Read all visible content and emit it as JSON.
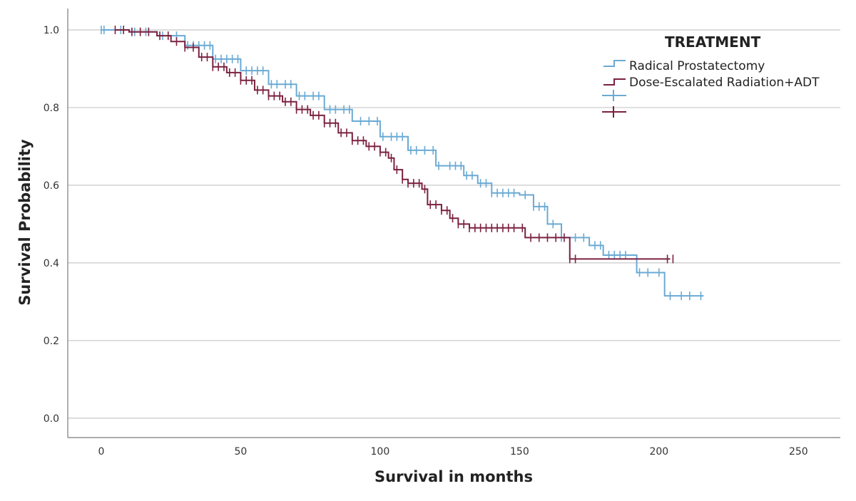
{
  "chart_data": {
    "type": "line",
    "title": "",
    "xlabel": "Survival in months",
    "ylabel": "Survival Probability",
    "xlim": [
      -12,
      265
    ],
    "ylim": [
      -0.05,
      1.055
    ],
    "x_ticks": [
      0,
      50,
      100,
      150,
      200,
      250
    ],
    "y_ticks": [
      0.0,
      0.2,
      0.4,
      0.6,
      0.8,
      1.0
    ],
    "x_tick_labels": [
      "0",
      "50",
      "100",
      "150",
      "200",
      "250"
    ],
    "y_tick_labels": [
      "0.0",
      "0.2",
      "0.4",
      "0.6",
      "0.8",
      "1.0"
    ],
    "grid": "horizontal",
    "legend": {
      "title": "TREATMENT",
      "placement": "top-right",
      "entries": [
        "Radical Prostatectomy",
        "Dose-Escalated Radiation+ADT",
        "",
        ""
      ]
    },
    "series": [
      {
        "name": "Radical Prostatectomy",
        "color": "#6aaad4",
        "step_points": [
          [
            0,
            1.0
          ],
          [
            10,
            0.995
          ],
          [
            20,
            0.985
          ],
          [
            30,
            0.96
          ],
          [
            40,
            0.925
          ],
          [
            50,
            0.895
          ],
          [
            60,
            0.86
          ],
          [
            70,
            0.83
          ],
          [
            80,
            0.795
          ],
          [
            90,
            0.765
          ],
          [
            100,
            0.725
          ],
          [
            110,
            0.69
          ],
          [
            120,
            0.65
          ],
          [
            130,
            0.625
          ],
          [
            135,
            0.605
          ],
          [
            140,
            0.58
          ],
          [
            150,
            0.575
          ],
          [
            155,
            0.545
          ],
          [
            160,
            0.5
          ],
          [
            165,
            0.465
          ],
          [
            175,
            0.445
          ],
          [
            180,
            0.42
          ],
          [
            190,
            0.42
          ],
          [
            192,
            0.375
          ],
          [
            202,
            0.315
          ],
          [
            216,
            0.315
          ]
        ],
        "censor_x": [
          0,
          1,
          7,
          12,
          16,
          22,
          27,
          31,
          33,
          35,
          37,
          39,
          41,
          43,
          45,
          47,
          49,
          52,
          54,
          56,
          58,
          61,
          63,
          66,
          68,
          71,
          73,
          76,
          78,
          82,
          84,
          87,
          89,
          93,
          96,
          99,
          101,
          104,
          106,
          108,
          111,
          113,
          116,
          119,
          121,
          125,
          127,
          129,
          131,
          133,
          136,
          138,
          140,
          142,
          144,
          146,
          148,
          152,
          155,
          157,
          159,
          162,
          165,
          170,
          173,
          177,
          179,
          182,
          184,
          186,
          188,
          193,
          196,
          200,
          204,
          208,
          211,
          215
        ]
      },
      {
        "name": "Dose-Escalated Radiation+ADT",
        "color": "#7b2140",
        "step_points": [
          [
            5,
            1.0
          ],
          [
            10,
            0.995
          ],
          [
            20,
            0.985
          ],
          [
            25,
            0.97
          ],
          [
            30,
            0.955
          ],
          [
            35,
            0.93
          ],
          [
            40,
            0.905
          ],
          [
            45,
            0.89
          ],
          [
            50,
            0.87
          ],
          [
            55,
            0.845
          ],
          [
            60,
            0.83
          ],
          [
            65,
            0.815
          ],
          [
            70,
            0.795
          ],
          [
            75,
            0.78
          ],
          [
            80,
            0.76
          ],
          [
            85,
            0.735
          ],
          [
            90,
            0.715
          ],
          [
            95,
            0.7
          ],
          [
            100,
            0.685
          ],
          [
            103,
            0.67
          ],
          [
            105,
            0.64
          ],
          [
            108,
            0.615
          ],
          [
            110,
            0.605
          ],
          [
            115,
            0.59
          ],
          [
            117,
            0.55
          ],
          [
            122,
            0.535
          ],
          [
            125,
            0.515
          ],
          [
            128,
            0.5
          ],
          [
            132,
            0.49
          ],
          [
            151,
            0.49
          ],
          [
            152,
            0.465
          ],
          [
            167,
            0.465
          ],
          [
            168,
            0.41
          ],
          [
            204,
            0.41
          ]
        ],
        "censor_x": [
          5,
          8,
          11,
          14,
          17,
          21,
          24,
          27,
          30,
          33,
          36,
          38,
          40,
          42,
          44,
          46,
          48,
          50,
          52,
          54,
          56,
          58,
          60,
          62,
          64,
          66,
          68,
          70,
          72,
          74,
          76,
          78,
          80,
          82,
          84,
          86,
          88,
          90,
          92,
          94,
          96,
          98,
          100,
          102,
          104,
          106,
          108,
          110,
          112,
          114,
          116,
          118,
          120,
          122,
          124,
          126,
          128,
          130,
          132,
          134,
          136,
          138,
          140,
          142,
          144,
          146,
          148,
          151,
          154,
          157,
          160,
          163,
          166,
          168,
          170,
          203,
          205
        ]
      }
    ]
  }
}
